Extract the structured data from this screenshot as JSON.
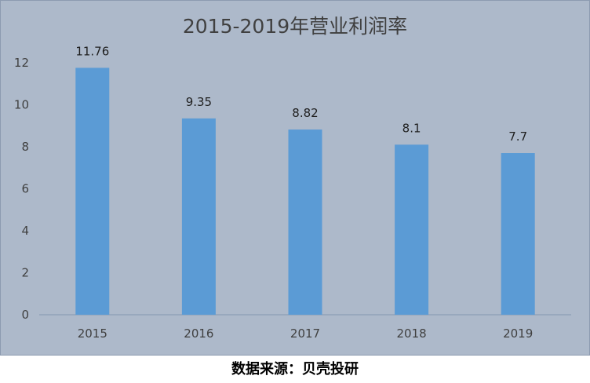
{
  "chart_data": {
    "type": "bar",
    "title": "2015-2019年营业利润率",
    "categories": [
      "2015",
      "2016",
      "2017",
      "2018",
      "2019"
    ],
    "values": [
      11.76,
      9.35,
      8.82,
      8.1,
      7.7
    ],
    "data_labels": [
      "11.76",
      "9.35",
      "8.82",
      "8.1",
      "7.7"
    ],
    "ylim": [
      0,
      12
    ],
    "yticks": [
      0,
      2,
      4,
      6,
      8,
      10,
      12
    ],
    "xlabel": "",
    "ylabel": "",
    "grid": false,
    "legend": "none",
    "bar_color": "#5b9bd5",
    "background_color": "#adb9ca"
  },
  "footer": {
    "source_text": "数据来源：贝壳投研"
  }
}
